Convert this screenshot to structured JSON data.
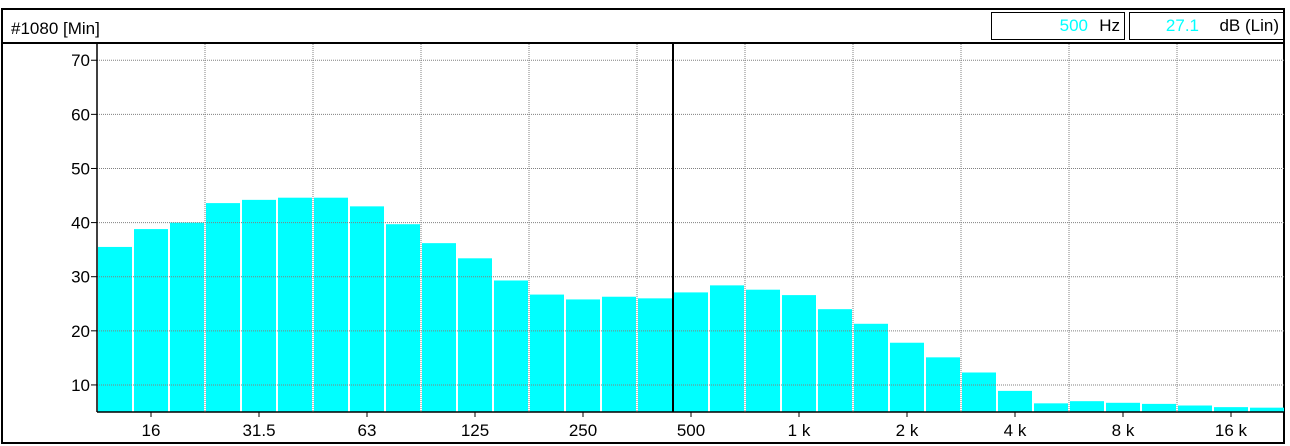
{
  "header": {
    "title": "#1080 [Min]",
    "cursor_freq_value": "500",
    "cursor_freq_unit": "Hz",
    "cursor_db_value": "27.1",
    "cursor_db_unit": "dB (Lin)"
  },
  "colors": {
    "bar": "#00ffff",
    "cursor_value": "#00ffff",
    "grid": "#808080"
  },
  "chart_data": {
    "type": "bar",
    "title": "#1080 [Min]",
    "xscale": "log (1/3 octave bands)",
    "ylim": [
      5,
      73
    ],
    "yticks": [
      10,
      20,
      30,
      40,
      50,
      60,
      70
    ],
    "xtick_labels": [
      "16",
      "31.5",
      "63",
      "125",
      "250",
      "500",
      "1 k",
      "2 k",
      "4 k",
      "8 k",
      "16 k"
    ],
    "grid": true,
    "cursor": {
      "x": "500",
      "value": 27.1
    },
    "values": [
      35.5,
      38.8,
      40.0,
      43.6,
      44.2,
      44.6,
      44.6,
      43.0,
      39.7,
      36.2,
      33.4,
      29.3,
      26.7,
      25.8,
      26.3,
      26.0,
      27.1,
      28.4,
      27.6,
      26.6,
      24.0,
      21.3,
      17.8,
      15.1,
      12.3,
      8.9,
      6.6,
      7.0,
      6.7,
      6.5,
      6.2,
      5.9,
      5.8
    ]
  }
}
